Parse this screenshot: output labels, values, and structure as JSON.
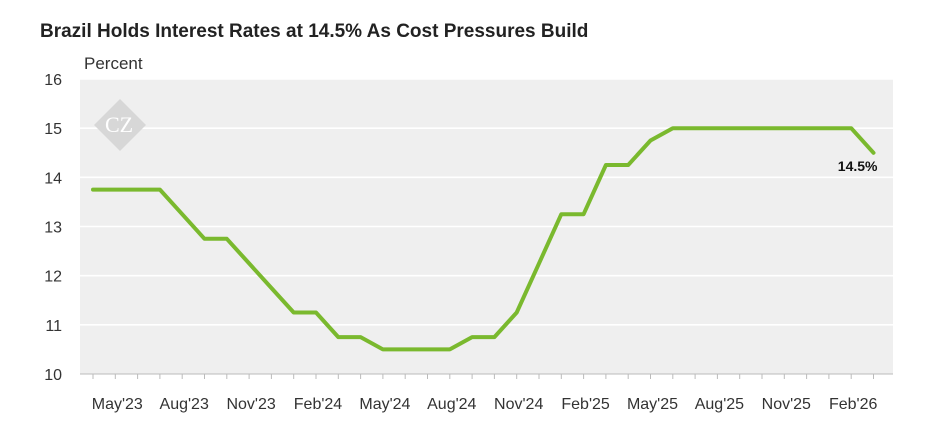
{
  "title": "Brazil Holds Interest Rates at 14.5% As Cost Pressures Build",
  "colors": {
    "line": "#7ab92e",
    "plot_bg": "#efefef",
    "gridline": "#ffffff",
    "axis": "#bbbbbb"
  },
  "watermark": {
    "text": "CZ",
    "icon": "cz-logo-diamond"
  },
  "chart_data": {
    "type": "line",
    "title": "Brazil Holds Interest Rates at 14.5% As Cost Pressures Build",
    "ylabel": "Percent",
    "ylim": [
      10,
      16
    ],
    "yticks": [
      10,
      11,
      12,
      13,
      14,
      15,
      16
    ],
    "grid": true,
    "xticks": [
      "May'23",
      "Aug'23",
      "Nov'23",
      "Feb'24",
      "May'24",
      "Aug'24",
      "Nov'24",
      "Feb'25",
      "May'25",
      "Aug'25",
      "Nov'25",
      "Feb'26"
    ],
    "x": [
      "Apr'23",
      "May'23",
      "Jun'23",
      "Jul'23",
      "Aug'23",
      "Sep'23",
      "Oct'23",
      "Nov'23",
      "Dec'23",
      "Jan'24",
      "Feb'24",
      "Mar'24",
      "Apr'24",
      "May'24",
      "Jun'24",
      "Jul'24",
      "Aug'24",
      "Sep'24",
      "Oct'24",
      "Nov'24",
      "Dec'24",
      "Jan'25",
      "Feb'25",
      "Mar'25",
      "Apr'25",
      "May'25",
      "Jun'25",
      "Jul'25",
      "Aug'25",
      "Sep'25",
      "Oct'25",
      "Nov'25",
      "Dec'25",
      "Jan'26",
      "Feb'26",
      "Mar'26"
    ],
    "series": [
      {
        "values": [
          13.75,
          13.75,
          13.75,
          13.75,
          13.25,
          12.75,
          12.75,
          12.25,
          11.75,
          11.25,
          11.25,
          10.75,
          10.75,
          10.5,
          10.5,
          10.5,
          10.5,
          10.75,
          10.75,
          11.25,
          12.25,
          13.25,
          13.25,
          14.25,
          14.25,
          14.75,
          15.0,
          15.0,
          15.0,
          15.0,
          15.0,
          15.0,
          15.0,
          15.0,
          15.0,
          14.5
        ]
      }
    ],
    "annotations": [
      {
        "text": "14.5%"
      }
    ]
  }
}
